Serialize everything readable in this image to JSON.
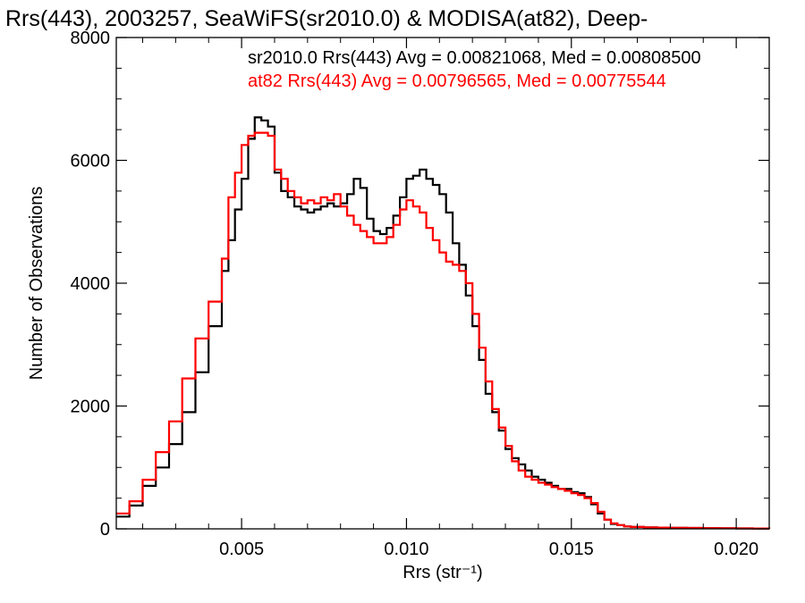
{
  "chart_data": {
    "type": "line",
    "title": "Rrs(443), 2003257, SeaWiFS(sr2010.0) & MODISA(at82), Deep-",
    "xlabel": "Rrs (str⁻¹)",
    "ylabel": "Number of Observations",
    "xlim": [
      0.0012,
      0.021
    ],
    "ylim": [
      0,
      8000
    ],
    "x_ticks": [
      0.005,
      0.01,
      0.015,
      0.02
    ],
    "x_tick_labels": [
      "0.005",
      "0.010",
      "0.015",
      "0.020"
    ],
    "y_ticks": [
      0,
      2000,
      4000,
      6000,
      8000
    ],
    "y_tick_labels": [
      "0",
      "2000",
      "4000",
      "6000",
      "8000"
    ],
    "grid": false,
    "step_style": "histogram",
    "legend_placement": "top-right",
    "annotations": [
      {
        "text": "sr2010.0 Rrs(443) Avg = 0.00821068, Med = 0.00808500",
        "color": "#000000"
      },
      {
        "text": "at82 Rrs(443) Avg = 0.00796565, Med = 0.00775544",
        "color": "#ff0000"
      }
    ],
    "series": [
      {
        "name": "sr2010.0",
        "color": "#000000",
        "x": [
          0.0012,
          0.0016,
          0.002,
          0.0024,
          0.0028,
          0.0032,
          0.0036,
          0.004,
          0.0044,
          0.0046,
          0.0048,
          0.005,
          0.0052,
          0.0054,
          0.0056,
          0.0058,
          0.006,
          0.0062,
          0.0064,
          0.0066,
          0.0068,
          0.007,
          0.0072,
          0.0074,
          0.0076,
          0.0078,
          0.008,
          0.0082,
          0.0084,
          0.0086,
          0.0088,
          0.009,
          0.0092,
          0.0094,
          0.0096,
          0.0098,
          0.01,
          0.0102,
          0.0104,
          0.0106,
          0.0108,
          0.011,
          0.0112,
          0.0114,
          0.0116,
          0.0118,
          0.012,
          0.0122,
          0.0124,
          0.0126,
          0.0128,
          0.013,
          0.0132,
          0.0134,
          0.0136,
          0.0138,
          0.014,
          0.0142,
          0.0144,
          0.0146,
          0.0148,
          0.015,
          0.0152,
          0.0154,
          0.0156,
          0.0158,
          0.016,
          0.0162,
          0.0164,
          0.0166,
          0.0168,
          0.0172,
          0.0176,
          0.018,
          0.0185,
          0.019,
          0.0195,
          0.02,
          0.0205,
          0.021
        ],
        "y": [
          200,
          380,
          700,
          1000,
          1380,
          1900,
          2550,
          3300,
          4200,
          4700,
          5200,
          5700,
          6350,
          6700,
          6650,
          6550,
          5800,
          5500,
          5400,
          5250,
          5200,
          5150,
          5200,
          5250,
          5300,
          5250,
          5300,
          5450,
          5700,
          5550,
          5050,
          4850,
          4800,
          4900,
          5100,
          5400,
          5700,
          5750,
          5850,
          5700,
          5600,
          5450,
          5150,
          4650,
          4300,
          3800,
          3300,
          2750,
          2200,
          1900,
          1600,
          1300,
          1150,
          1050,
          950,
          850,
          800,
          750,
          700,
          650,
          650,
          600,
          580,
          520,
          400,
          250,
          150,
          80,
          60,
          40,
          30,
          25,
          20,
          18,
          15,
          12,
          10,
          8,
          6,
          5
        ]
      },
      {
        "name": "at82",
        "color": "#ff0000",
        "x": [
          0.0012,
          0.0016,
          0.002,
          0.0024,
          0.0028,
          0.0032,
          0.0036,
          0.004,
          0.0044,
          0.0046,
          0.0048,
          0.005,
          0.0052,
          0.0054,
          0.0056,
          0.0058,
          0.006,
          0.0062,
          0.0064,
          0.0066,
          0.0068,
          0.007,
          0.0072,
          0.0074,
          0.0076,
          0.0078,
          0.008,
          0.0082,
          0.0084,
          0.0086,
          0.0088,
          0.009,
          0.0092,
          0.0094,
          0.0096,
          0.0098,
          0.01,
          0.0102,
          0.0104,
          0.0106,
          0.0108,
          0.011,
          0.0112,
          0.0114,
          0.0116,
          0.0118,
          0.012,
          0.0122,
          0.0124,
          0.0126,
          0.0128,
          0.013,
          0.0132,
          0.0134,
          0.0136,
          0.0138,
          0.014,
          0.0142,
          0.0144,
          0.0146,
          0.0148,
          0.015,
          0.0152,
          0.0154,
          0.0156,
          0.0158,
          0.016,
          0.0162,
          0.0164,
          0.0166,
          0.0168,
          0.0172,
          0.0176,
          0.018,
          0.0185,
          0.019,
          0.0195,
          0.02,
          0.0205,
          0.021
        ],
        "y": [
          250,
          450,
          800,
          1250,
          1750,
          2450,
          3100,
          3700,
          4400,
          5400,
          5800,
          6250,
          6400,
          6450,
          6450,
          6400,
          5850,
          5700,
          5500,
          5400,
          5300,
          5350,
          5300,
          5400,
          5350,
          5450,
          5250,
          5100,
          4950,
          4850,
          4750,
          4650,
          4650,
          4750,
          4950,
          5200,
          5350,
          5250,
          5150,
          4900,
          4700,
          4500,
          4350,
          4300,
          4200,
          4000,
          3500,
          2950,
          2400,
          1950,
          1650,
          1350,
          1100,
          950,
          850,
          800,
          750,
          720,
          680,
          650,
          620,
          580,
          550,
          500,
          420,
          280,
          150,
          90,
          60,
          40,
          30,
          25,
          20,
          18,
          15,
          12,
          10,
          8,
          6,
          5
        ]
      }
    ]
  }
}
